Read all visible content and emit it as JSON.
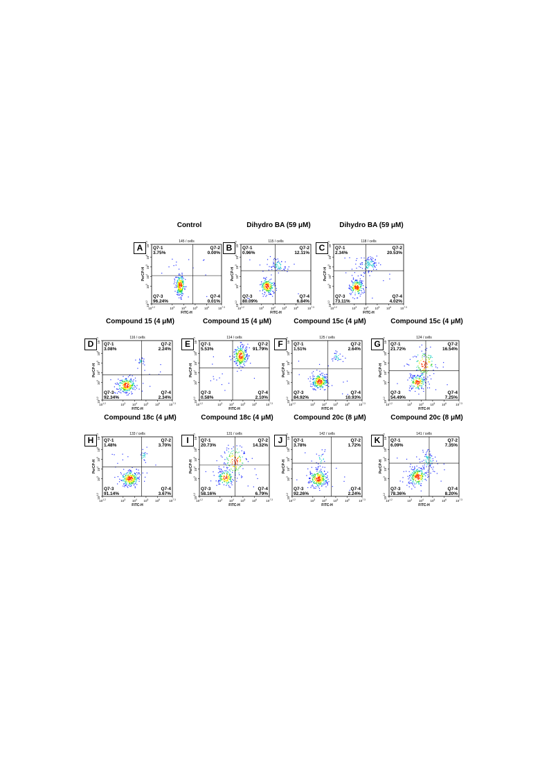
{
  "chart_data": [
    {
      "type": "scatter",
      "panel_letter": "A",
      "title": "Control",
      "gate_label": "145 / cells",
      "xlabel": "FITC-H",
      "ylabel": "PerCP-H",
      "x_tick_labels": [
        "10^1.2",
        "10^3",
        "10^4",
        "10^5",
        "10^6",
        "10^7.3"
      ],
      "y_tick_labels": [
        "10^1.2",
        "10^3",
        "10^4",
        "10^5",
        "10^6",
        "10^7.3"
      ],
      "xlim": [
        1.2,
        7.3
      ],
      "ylim": [
        1.2,
        7.3
      ],
      "quadrant_gate": {
        "x": 4.8,
        "y": 4.1
      },
      "quadrants": [
        {
          "name": "Q7-1",
          "value": "3.75%"
        },
        {
          "name": "Q7-2",
          "value": "0.00%"
        },
        {
          "name": "Q7-3",
          "value": "96.24%"
        },
        {
          "name": "Q7-4",
          "value": "0.01%"
        }
      ],
      "populations": [
        {
          "cx": 3.7,
          "cy": 3.1,
          "sx": 0.2,
          "sy": 0.55,
          "n": 220
        }
      ]
    },
    {
      "type": "scatter",
      "panel_letter": "B",
      "title": "Dihydro BA (59 μM)",
      "gate_label": "115 / cells",
      "xlabel": "FITC-H",
      "ylabel": "PerCP-H",
      "x_tick_labels": [
        "10^1.2",
        "10^3",
        "10^4",
        "10^5",
        "10^6",
        "10^7.3"
      ],
      "y_tick_labels": [
        "10^1.2",
        "10^3",
        "10^4",
        "10^5",
        "10^6",
        "10^7.3"
      ],
      "xlim": [
        1.2,
        7.3
      ],
      "ylim": [
        1.2,
        7.3
      ],
      "quadrant_gate": {
        "x": 4.2,
        "y": 4.6
      },
      "quadrants": [
        {
          "name": "Q7-1",
          "value": "0.96%"
        },
        {
          "name": "Q7-2",
          "value": "12.11%"
        },
        {
          "name": "Q7-3",
          "value": "80.09%"
        },
        {
          "name": "Q7-4",
          "value": "6.84%"
        }
      ],
      "populations": [
        {
          "cx": 3.5,
          "cy": 3.0,
          "sx": 0.3,
          "sy": 0.4,
          "n": 190
        },
        {
          "cx": 4.5,
          "cy": 5.1,
          "sx": 0.35,
          "sy": 0.35,
          "n": 60
        }
      ]
    },
    {
      "type": "scatter",
      "panel_letter": "C",
      "title": "Dihydro BA (59 μM)",
      "gate_label": "118 / cells",
      "xlabel": "FITC-H",
      "ylabel": "PerCP-H",
      "x_tick_labels": [
        "10^1.2",
        "10^3",
        "10^4",
        "10^5",
        "10^6",
        "10^7.3"
      ],
      "y_tick_labels": [
        "10^1.2",
        "10^3",
        "10^4",
        "10^5",
        "10^6",
        "10^7.3"
      ],
      "xlim": [
        1.2,
        7.3
      ],
      "ylim": [
        1.2,
        7.3
      ],
      "quadrant_gate": {
        "x": 4.0,
        "y": 4.6
      },
      "quadrants": [
        {
          "name": "Q7-1",
          "value": "2.34%"
        },
        {
          "name": "Q7-2",
          "value": "20.53%"
        },
        {
          "name": "Q7-3",
          "value": "73.11%"
        },
        {
          "name": "Q7-4",
          "value": "4.02%"
        }
      ],
      "populations": [
        {
          "cx": 3.2,
          "cy": 2.9,
          "sx": 0.3,
          "sy": 0.4,
          "n": 180
        },
        {
          "cx": 4.3,
          "cy": 5.2,
          "sx": 0.4,
          "sy": 0.5,
          "n": 100
        }
      ]
    },
    {
      "type": "scatter",
      "panel_letter": "D",
      "title": "Compound 15 (4 μM)",
      "gate_label": "116 / cells",
      "xlabel": "FITC-H",
      "ylabel": "PerCP-H",
      "x_tick_labels": [
        "10^1.2",
        "10^3",
        "10^4",
        "10^5",
        "10^6",
        "10^7.3"
      ],
      "y_tick_labels": [
        "10^1.2",
        "10^3",
        "10^4",
        "10^5",
        "10^6",
        "10^7.3"
      ],
      "xlim": [
        1.2,
        7.3
      ],
      "ylim": [
        1.2,
        7.3
      ],
      "quadrant_gate": {
        "x": 4.6,
        "y": 3.8
      },
      "quadrants": [
        {
          "name": "Q7-1",
          "value": "3.08%"
        },
        {
          "name": "Q7-2",
          "value": "2.24%"
        },
        {
          "name": "Q7-3",
          "value": "92.34%"
        },
        {
          "name": "Q7-4",
          "value": "2.34%"
        }
      ],
      "populations": [
        {
          "cx": 3.3,
          "cy": 2.7,
          "sx": 0.4,
          "sy": 0.4,
          "n": 240
        },
        {
          "cx": 4.6,
          "cy": 5.2,
          "sx": 0.15,
          "sy": 0.2,
          "n": 20
        }
      ]
    },
    {
      "type": "scatter",
      "panel_letter": "E",
      "title": "Compound 15 (4 μM)",
      "gate_label": "114 / cells",
      "xlabel": "FITC-H",
      "ylabel": "PerCP-H",
      "x_tick_labels": [
        "10^1.2",
        "10^3",
        "10^4",
        "10^5",
        "10^6",
        "10^7.3"
      ],
      "y_tick_labels": [
        "10^1.2",
        "10^3",
        "10^4",
        "10^5",
        "10^6",
        "10^7.3"
      ],
      "xlim": [
        1.2,
        7.3
      ],
      "ylim": [
        1.2,
        7.3
      ],
      "quadrant_gate": {
        "x": 4.1,
        "y": 4.5
      },
      "quadrants": [
        {
          "name": "Q7-1",
          "value": "5.53%"
        },
        {
          "name": "Q7-2",
          "value": "91.79%"
        },
        {
          "name": "Q7-3",
          "value": "0.58%"
        },
        {
          "name": "Q7-4",
          "value": "2.10%"
        }
      ],
      "populations": [
        {
          "cx": 4.8,
          "cy": 5.7,
          "sx": 0.3,
          "sy": 0.55,
          "n": 240
        }
      ]
    },
    {
      "type": "scatter",
      "panel_letter": "F",
      "title": "Compound 15c (4 μM)",
      "gate_label": "125 / cells",
      "xlabel": "FITC-H",
      "ylabel": "PerCP-H",
      "x_tick_labels": [
        "10^1.2",
        "10^3",
        "10^4",
        "10^5",
        "10^6",
        "10^7.3"
      ],
      "y_tick_labels": [
        "10^1.2",
        "10^3",
        "10^4",
        "10^5",
        "10^6",
        "10^7.3"
      ],
      "xlim": [
        1.2,
        7.3
      ],
      "ylim": [
        1.2,
        7.3
      ],
      "quadrant_gate": {
        "x": 4.3,
        "y": 4.4
      },
      "quadrants": [
        {
          "name": "Q7-1",
          "value": "1.51%"
        },
        {
          "name": "Q7-2",
          "value": "2.64%"
        },
        {
          "name": "Q7-3",
          "value": "84.92%"
        },
        {
          "name": "Q7-4",
          "value": "10.93%"
        }
      ],
      "populations": [
        {
          "cx": 3.6,
          "cy": 3.1,
          "sx": 0.35,
          "sy": 0.4,
          "n": 220
        },
        {
          "cx": 5.2,
          "cy": 5.6,
          "sx": 0.3,
          "sy": 0.3,
          "n": 30
        }
      ]
    },
    {
      "type": "scatter",
      "panel_letter": "G",
      "title": "Compound 15c (4 μM)",
      "gate_label": "124 / cells",
      "xlabel": "FITC-H",
      "ylabel": "PerCP-H",
      "x_tick_labels": [
        "10^1.2",
        "10^3",
        "10^4",
        "10^5",
        "10^6",
        "10^7.3"
      ],
      "y_tick_labels": [
        "10^1.2",
        "10^3",
        "10^4",
        "10^5",
        "10^6",
        "10^7.3"
      ],
      "xlim": [
        1.2,
        7.3
      ],
      "ylim": [
        1.2,
        7.3
      ],
      "quadrant_gate": {
        "x": 4.4,
        "y": 4.2
      },
      "quadrants": [
        {
          "name": "Q7-1",
          "value": "21.72%"
        },
        {
          "name": "Q7-2",
          "value": "16.54%"
        },
        {
          "name": "Q7-3",
          "value": "54.49%"
        },
        {
          "name": "Q7-4",
          "value": "7.25%"
        }
      ],
      "populations": [
        {
          "cx": 3.7,
          "cy": 3.0,
          "sx": 0.35,
          "sy": 0.4,
          "n": 150
        },
        {
          "cx": 4.3,
          "cy": 4.9,
          "sx": 0.5,
          "sy": 0.8,
          "n": 120
        }
      ]
    },
    {
      "type": "scatter",
      "panel_letter": "H",
      "title": "Compound 18c (4 μM)",
      "gate_label": "133 / cells",
      "xlabel": "FITC-H",
      "ylabel": "PerCP-H",
      "x_tick_labels": [
        "10^1.2",
        "10^3",
        "10^4",
        "10^5",
        "10^6",
        "10^7.3"
      ],
      "y_tick_labels": [
        "10^1.2",
        "10^3",
        "10^4",
        "10^5",
        "10^6",
        "10^7.3"
      ],
      "xlim": [
        1.2,
        7.3
      ],
      "ylim": [
        1.2,
        7.3
      ],
      "quadrant_gate": {
        "x": 4.6,
        "y": 4.2
      },
      "quadrants": [
        {
          "name": "Q7-1",
          "value": "1.48%"
        },
        {
          "name": "Q7-2",
          "value": "3.70%"
        },
        {
          "name": "Q7-3",
          "value": "91.14%"
        },
        {
          "name": "Q7-4",
          "value": "3.67%"
        }
      ],
      "populations": [
        {
          "cx": 3.6,
          "cy": 3.0,
          "sx": 0.4,
          "sy": 0.4,
          "n": 240
        },
        {
          "cx": 4.8,
          "cy": 5.3,
          "sx": 0.2,
          "sy": 0.3,
          "n": 20
        }
      ]
    },
    {
      "type": "scatter",
      "panel_letter": "I",
      "title": "Compound 18c (4 μM)",
      "gate_label": "131 / cells",
      "xlabel": "FITC-H",
      "ylabel": "PerCP-H",
      "x_tick_labels": [
        "10^1.2",
        "10^3",
        "10^4",
        "10^5",
        "10^6",
        "10^7.3"
      ],
      "y_tick_labels": [
        "10^1.2",
        "10^3",
        "10^4",
        "10^5",
        "10^6",
        "10^7.3"
      ],
      "xlim": [
        1.2,
        7.3
      ],
      "ylim": [
        1.2,
        7.3
      ],
      "quadrant_gate": {
        "x": 4.3,
        "y": 4.4
      },
      "quadrants": [
        {
          "name": "Q7-1",
          "value": "20.73%"
        },
        {
          "name": "Q7-2",
          "value": "14.32%"
        },
        {
          "name": "Q7-3",
          "value": "58.16%"
        },
        {
          "name": "Q7-4",
          "value": "6.79%"
        }
      ],
      "populations": [
        {
          "cx": 3.5,
          "cy": 3.1,
          "sx": 0.35,
          "sy": 0.4,
          "n": 150
        },
        {
          "cx": 4.3,
          "cy": 4.8,
          "sx": 0.5,
          "sy": 0.8,
          "n": 120
        }
      ]
    },
    {
      "type": "scatter",
      "panel_letter": "J",
      "title": "Compound 20c (8 μM)",
      "gate_label": "142 / cells",
      "xlabel": "FITC-H",
      "ylabel": "PerCP-H",
      "x_tick_labels": [
        "10^1.2",
        "10^3",
        "10^4",
        "10^5",
        "10^6",
        "10^7.3"
      ],
      "y_tick_labels": [
        "10^1.2",
        "10^3",
        "10^4",
        "10^5",
        "10^6",
        "10^7.3"
      ],
      "xlim": [
        1.2,
        7.3
      ],
      "ylim": [
        1.2,
        7.3
      ],
      "quadrant_gate": {
        "x": 4.6,
        "y": 4.6
      },
      "quadrants": [
        {
          "name": "Q7-1",
          "value": "3.78%"
        },
        {
          "name": "Q7-2",
          "value": "1.72%"
        },
        {
          "name": "Q7-3",
          "value": "92.26%"
        },
        {
          "name": "Q7-4",
          "value": "2.24%"
        }
      ],
      "populations": [
        {
          "cx": 3.5,
          "cy": 3.0,
          "sx": 0.4,
          "sy": 0.45,
          "n": 240
        },
        {
          "cx": 3.7,
          "cy": 4.9,
          "sx": 0.25,
          "sy": 0.5,
          "n": 25
        }
      ]
    },
    {
      "type": "scatter",
      "panel_letter": "K",
      "title": "Compound 20c (8 μM)",
      "gate_label": "141 / cells",
      "xlabel": "FITC-H",
      "ylabel": "PerCP-H",
      "x_tick_labels": [
        "10^1.2",
        "10^3",
        "10^4",
        "10^5",
        "10^6",
        "10^7.3"
      ],
      "y_tick_labels": [
        "10^1.2",
        "10^3",
        "10^4",
        "10^5",
        "10^6",
        "10^7.3"
      ],
      "xlim": [
        1.2,
        7.3
      ],
      "ylim": [
        1.2,
        7.3
      ],
      "quadrant_gate": {
        "x": 4.7,
        "y": 4.6
      },
      "quadrants": [
        {
          "name": "Q7-1",
          "value": "6.09%"
        },
        {
          "name": "Q7-2",
          "value": "7.35%"
        },
        {
          "name": "Q7-3",
          "value": "78.36%"
        },
        {
          "name": "Q7-4",
          "value": "8.20%"
        }
      ],
      "populations": [
        {
          "cx": 3.7,
          "cy": 3.2,
          "sx": 0.4,
          "sy": 0.45,
          "n": 210
        },
        {
          "cx": 4.6,
          "cy": 4.9,
          "sx": 0.35,
          "sy": 0.55,
          "n": 70
        }
      ]
    }
  ],
  "colors": {
    "low": "#1c2bff",
    "mid": "#20d0d0",
    "mid2": "#3cd23c",
    "high": "#ffee00",
    "peak": "#ff3300",
    "gate_line": "#000000",
    "axis": "#000000"
  }
}
